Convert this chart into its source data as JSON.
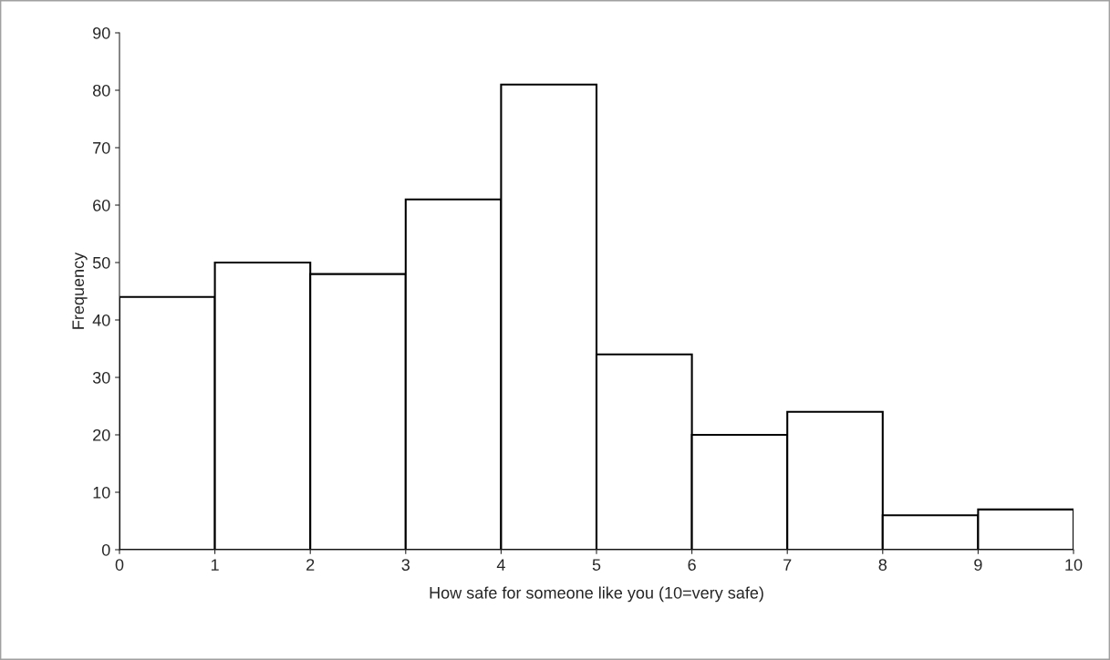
{
  "chart_data": {
    "type": "histogram",
    "xlabel": "How safe for someone like you (10=very safe)",
    "ylabel": "Frequency",
    "bins": [
      0,
      1,
      2,
      3,
      4,
      5,
      6,
      7,
      8,
      9,
      10
    ],
    "values": [
      44,
      50,
      48,
      61,
      81,
      34,
      20,
      24,
      6,
      7
    ],
    "color": "#ffffff",
    "xlim": [
      0,
      10
    ],
    "xticks": [
      0,
      1,
      2,
      3,
      4,
      5,
      6,
      7,
      8,
      9,
      10
    ],
    "ylim": [
      0,
      90
    ],
    "yticks": [
      0,
      10,
      20,
      30,
      40,
      50,
      60,
      70,
      80,
      90
    ]
  }
}
